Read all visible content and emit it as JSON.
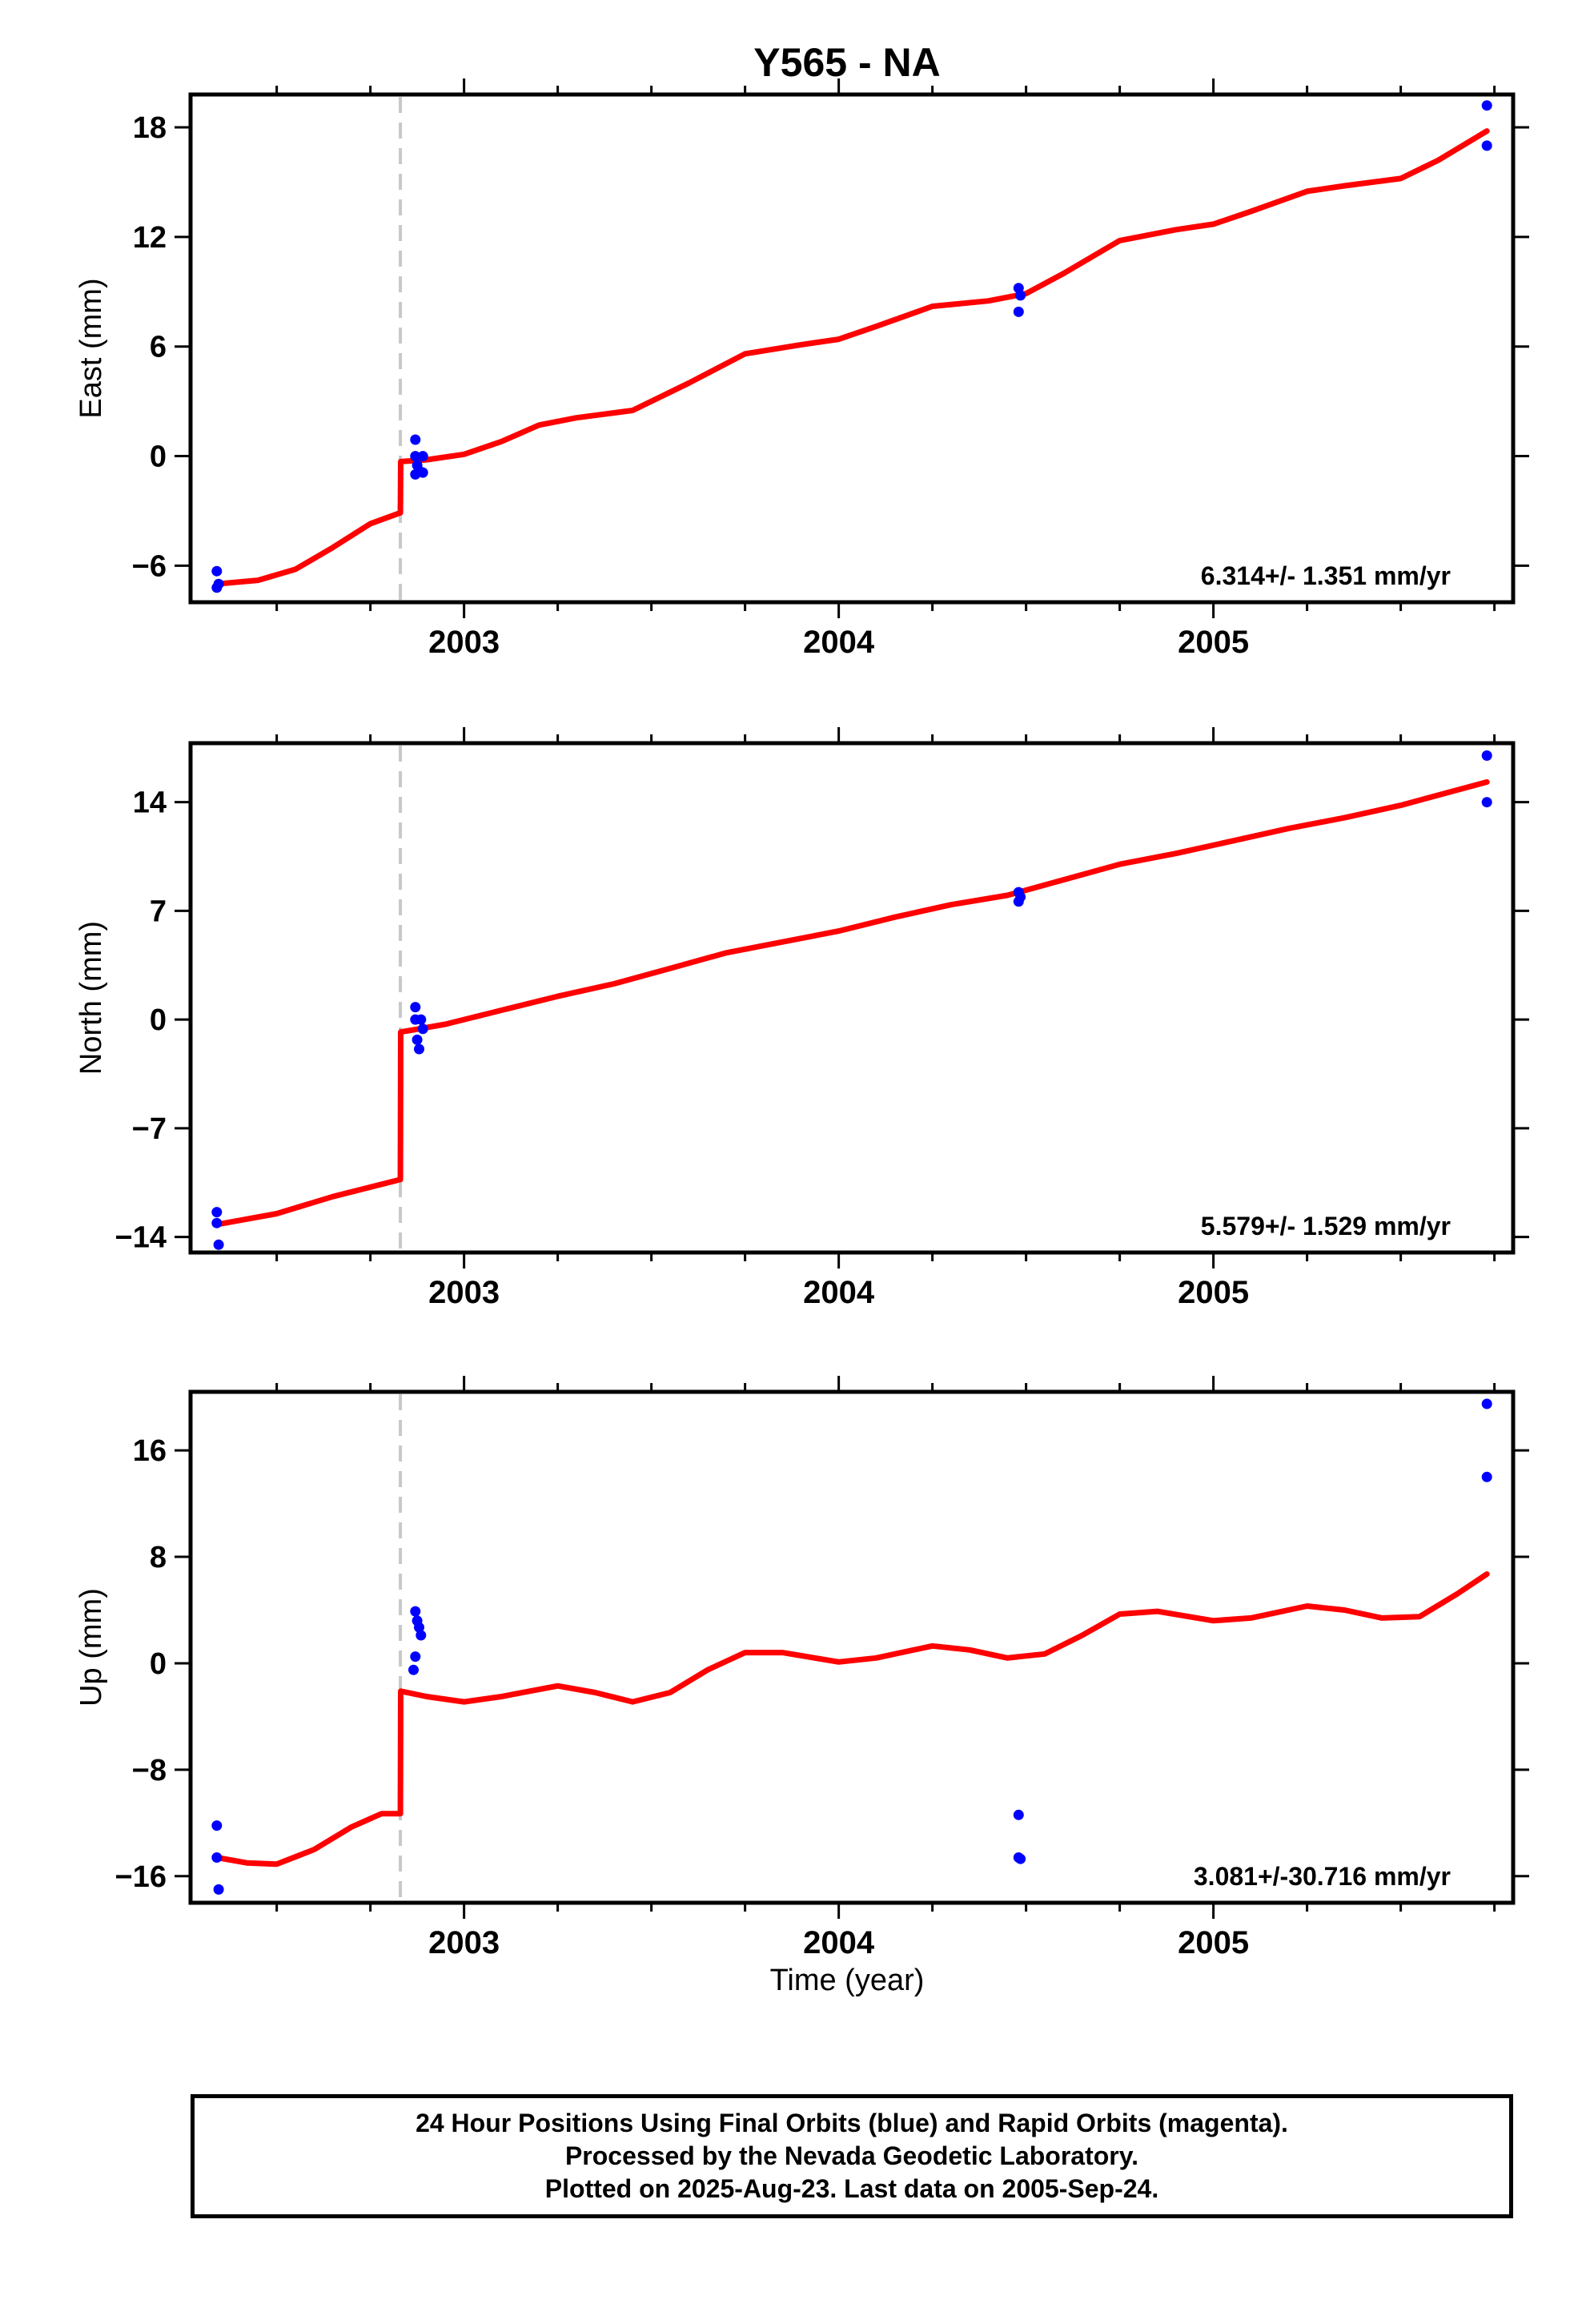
{
  "title": "Y565 - NA",
  "xlabel": "Time (year)",
  "footer": {
    "line1": "24 Hour Positions Using Final Orbits (blue) and Rapid Orbits (magenta).",
    "line2": "Processed by the Nevada Geodetic Laboratory.",
    "line3": "Plotted on 2025-Aug-23. Last data on 2005-Sep-24."
  },
  "colors": {
    "data": "#0000ff",
    "model": "#ff0000",
    "event_line": "#c8c8c8",
    "frame": "#000000"
  },
  "chart_data": [
    {
      "type": "scatter",
      "name": "east",
      "ylabel": "East (mm)",
      "xlim": [
        2002.27,
        2005.8
      ],
      "ylim": [
        -8.0,
        19.8
      ],
      "yticks": [
        -6,
        0,
        6,
        12,
        18
      ],
      "ytick_labels": [
        "−6",
        "0",
        "6",
        "12",
        "18"
      ],
      "xticks": [
        2003,
        2004,
        2005
      ],
      "xtick_labels": [
        "2003",
        "2004",
        "2005"
      ],
      "event_x": 2002.83,
      "rate_label": "6.314+/- 1.351 mm/yr",
      "points": [
        [
          2002.34,
          -6.3
        ],
        [
          2002.34,
          -7.2
        ],
        [
          2002.345,
          -7.0
        ],
        [
          2002.87,
          0.9
        ],
        [
          2002.87,
          0.0
        ],
        [
          2002.87,
          -1.0
        ],
        [
          2002.88,
          -0.8
        ],
        [
          2002.89,
          0.0
        ],
        [
          2002.89,
          -0.9
        ],
        [
          2002.875,
          -0.5
        ],
        [
          2004.48,
          9.2
        ],
        [
          2004.48,
          7.9
        ],
        [
          2004.485,
          8.8
        ],
        [
          2005.73,
          19.2
        ],
        [
          2005.73,
          17.0
        ]
      ],
      "model": [
        [
          2002.34,
          -7.0
        ],
        [
          2002.45,
          -6.8
        ],
        [
          2002.55,
          -6.2
        ],
        [
          2002.65,
          -5.0
        ],
        [
          2002.75,
          -3.7
        ],
        [
          2002.83,
          -3.1
        ],
        [
          2002.831,
          -0.3
        ],
        [
          2002.9,
          -0.2
        ],
        [
          2003.0,
          0.1
        ],
        [
          2003.1,
          0.8
        ],
        [
          2003.2,
          1.7
        ],
        [
          2003.3,
          2.1
        ],
        [
          2003.45,
          2.5
        ],
        [
          2003.6,
          4.0
        ],
        [
          2003.75,
          5.6
        ],
        [
          2003.9,
          6.1
        ],
        [
          2004.0,
          6.4
        ],
        [
          2004.1,
          7.1
        ],
        [
          2004.25,
          8.2
        ],
        [
          2004.4,
          8.5
        ],
        [
          2004.5,
          8.9
        ],
        [
          2004.6,
          10.0
        ],
        [
          2004.75,
          11.8
        ],
        [
          2004.9,
          12.4
        ],
        [
          2005.0,
          12.7
        ],
        [
          2005.1,
          13.4
        ],
        [
          2005.25,
          14.5
        ],
        [
          2005.35,
          14.8
        ],
        [
          2005.5,
          15.2
        ],
        [
          2005.6,
          16.2
        ],
        [
          2005.73,
          17.8
        ]
      ]
    },
    {
      "type": "scatter",
      "name": "north",
      "ylabel": "North (mm)",
      "xlim": [
        2002.27,
        2005.8
      ],
      "ylim": [
        -15.0,
        17.8
      ],
      "yticks": [
        -14,
        -7,
        0,
        7,
        14
      ],
      "ytick_labels": [
        "−14",
        "−7",
        "0",
        "7",
        "14"
      ],
      "xticks": [
        2003,
        2004,
        2005
      ],
      "xtick_labels": [
        "2003",
        "2004",
        "2005"
      ],
      "event_x": 2002.83,
      "rate_label": "5.579+/- 1.529 mm/yr",
      "points": [
        [
          2002.34,
          -12.4
        ],
        [
          2002.34,
          -13.1
        ],
        [
          2002.345,
          -14.5
        ],
        [
          2002.87,
          0.8
        ],
        [
          2002.87,
          0.0
        ],
        [
          2002.875,
          -1.3
        ],
        [
          2002.88,
          -1.9
        ],
        [
          2002.885,
          0.0
        ],
        [
          2002.89,
          -0.6
        ],
        [
          2004.48,
          8.2
        ],
        [
          2004.48,
          7.6
        ],
        [
          2004.485,
          7.9
        ],
        [
          2005.73,
          17.0
        ],
        [
          2005.73,
          14.0
        ]
      ],
      "model": [
        [
          2002.34,
          -13.2
        ],
        [
          2002.5,
          -12.5
        ],
        [
          2002.65,
          -11.4
        ],
        [
          2002.83,
          -10.3
        ],
        [
          2002.831,
          -0.8
        ],
        [
          2002.95,
          -0.3
        ],
        [
          2003.1,
          0.6
        ],
        [
          2003.25,
          1.5
        ],
        [
          2003.4,
          2.3
        ],
        [
          2003.55,
          3.3
        ],
        [
          2003.7,
          4.3
        ],
        [
          2003.85,
          5.0
        ],
        [
          2004.0,
          5.7
        ],
        [
          2004.15,
          6.6
        ],
        [
          2004.3,
          7.4
        ],
        [
          2004.45,
          8.0
        ],
        [
          2004.6,
          9.0
        ],
        [
          2004.75,
          10.0
        ],
        [
          2004.9,
          10.7
        ],
        [
          2005.05,
          11.5
        ],
        [
          2005.2,
          12.3
        ],
        [
          2005.35,
          13.0
        ],
        [
          2005.5,
          13.8
        ],
        [
          2005.73,
          15.3
        ]
      ]
    },
    {
      "type": "scatter",
      "name": "up",
      "ylabel": "Up (mm)",
      "xlim": [
        2002.27,
        2005.8
      ],
      "ylim": [
        -18.0,
        20.4
      ],
      "yticks": [
        -16,
        -8,
        0,
        8,
        16
      ],
      "ytick_labels": [
        "−16",
        "−8",
        "0",
        "8",
        "16"
      ],
      "xticks": [
        2003,
        2004,
        2005
      ],
      "xtick_labels": [
        "2003",
        "2004",
        "2005"
      ],
      "event_x": 2002.83,
      "rate_label": "3.081+/-30.716 mm/yr",
      "points": [
        [
          2002.34,
          -12.2
        ],
        [
          2002.34,
          -14.6
        ],
        [
          2002.345,
          -17.0
        ],
        [
          2002.87,
          3.9
        ],
        [
          2002.875,
          3.2
        ],
        [
          2002.88,
          2.7
        ],
        [
          2002.885,
          2.1
        ],
        [
          2002.87,
          0.5
        ],
        [
          2002.865,
          -0.5
        ],
        [
          2004.48,
          -11.4
        ],
        [
          2004.48,
          -14.6
        ],
        [
          2004.485,
          -14.7
        ],
        [
          2005.73,
          19.5
        ],
        [
          2005.73,
          14.0
        ]
      ],
      "model": [
        [
          2002.34,
          -14.6
        ],
        [
          2002.42,
          -15.0
        ],
        [
          2002.5,
          -15.1
        ],
        [
          2002.6,
          -14.0
        ],
        [
          2002.7,
          -12.3
        ],
        [
          2002.78,
          -11.3
        ],
        [
          2002.83,
          -11.3
        ],
        [
          2002.831,
          -2.1
        ],
        [
          2002.9,
          -2.5
        ],
        [
          2003.0,
          -2.9
        ],
        [
          2003.1,
          -2.5
        ],
        [
          2003.25,
          -1.7
        ],
        [
          2003.35,
          -2.2
        ],
        [
          2003.45,
          -2.9
        ],
        [
          2003.55,
          -2.2
        ],
        [
          2003.65,
          -0.5
        ],
        [
          2003.75,
          0.8
        ],
        [
          2003.85,
          0.8
        ],
        [
          2004.0,
          0.1
        ],
        [
          2004.1,
          0.4
        ],
        [
          2004.25,
          1.3
        ],
        [
          2004.35,
          1.0
        ],
        [
          2004.45,
          0.4
        ],
        [
          2004.55,
          0.7
        ],
        [
          2004.65,
          2.1
        ],
        [
          2004.75,
          3.7
        ],
        [
          2004.85,
          3.9
        ],
        [
          2005.0,
          3.2
        ],
        [
          2005.1,
          3.4
        ],
        [
          2005.25,
          4.3
        ],
        [
          2005.35,
          4.0
        ],
        [
          2005.45,
          3.4
        ],
        [
          2005.55,
          3.5
        ],
        [
          2005.65,
          5.2
        ],
        [
          2005.73,
          6.7
        ]
      ]
    }
  ]
}
